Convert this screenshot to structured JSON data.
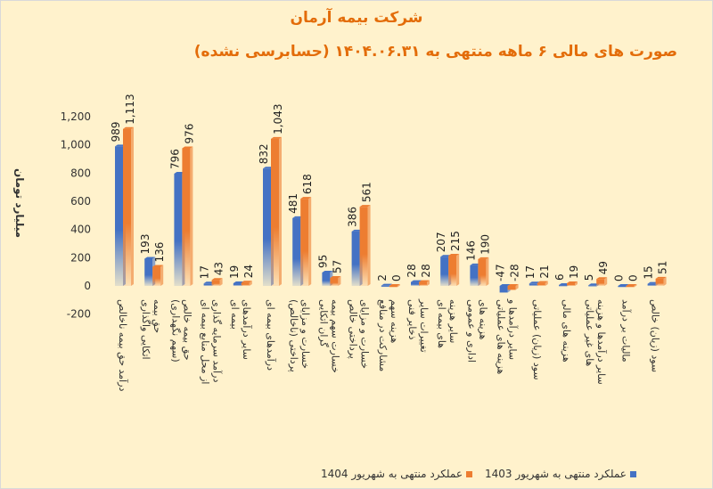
{
  "chart_data": {
    "type": "bar",
    "title": "شرکت بیمه آرمان",
    "subtitle": "صورت های مالی ۶ ماهه منتهی به ۱۴۰۴.۰۶.۳۱ (حسابرسی نشده)",
    "ylabel": "میلیارد تومان",
    "ylim": [
      -200,
      1200
    ],
    "yticks": [
      "-200",
      "0",
      "200",
      "400",
      "600",
      "800",
      "1,000",
      "1,200"
    ],
    "ytick_values": [
      -200,
      0,
      200,
      400,
      600,
      800,
      1000,
      1200
    ],
    "grid": false,
    "legend_position": "bottom",
    "categories": [
      "درآمد حق بیمه ناخالص",
      "حق بیمه اتکایی واگذاری",
      "حق بیمه خالص (سهم نگهداری)",
      "درآمد سرمایه گذاری از محل منابع بیمه ای",
      "سایر درآمدهای بیمه ای",
      "درآمدهای بیمه ای",
      "خسارت و مزایای پرداختی (ناخالص)",
      "خسارت سهم بیمه گران اتکایی",
      "خسارت و مزایای پرداختی خالص",
      "هزینه سهم مشارکت در منافع",
      "تغییرات سایر ذخایر فنی",
      "سایر هزینه های بیمه ای",
      "هزینه های اداری و عمومی",
      "سایر درآمدها و هزینه های عملیاتی",
      "سود (زیان) عملیاتی",
      "هزینه های مالی",
      "سایر درآمدها و هزینه های غیر عملیاتی",
      "مالیات بر درآمد",
      "سود (زیان) خالص"
    ],
    "series": [
      {
        "name": "عملکرد منتهی به شهریور 1403",
        "color": "#4472c4",
        "values": [
          989,
          193,
          796,
          17,
          19,
          832,
          481,
          95,
          386,
          2,
          28,
          207,
          146,
          -47,
          17,
          6,
          5,
          0,
          15
        ],
        "labels": [
          "989",
          "193",
          "796",
          "17",
          "19",
          "832",
          "481",
          "95",
          "386",
          "2",
          "28",
          "207",
          "146",
          "-47",
          "17",
          "6",
          "5",
          "0",
          "15"
        ]
      },
      {
        "name": "عملکرد منتهی به شهریور 1404",
        "color": "#ed7d31",
        "values": [
          1113,
          136,
          976,
          43,
          24,
          1043,
          618,
          57,
          561,
          0,
          28,
          215,
          190,
          -28,
          21,
          19,
          49,
          0,
          51
        ],
        "labels": [
          "1,113",
          "136",
          "976",
          "43",
          "24",
          "1,043",
          "618",
          "57",
          "561",
          "0",
          "28",
          "215",
          "190",
          "-28",
          "21",
          "19",
          "49",
          "0",
          "51"
        ]
      }
    ]
  }
}
